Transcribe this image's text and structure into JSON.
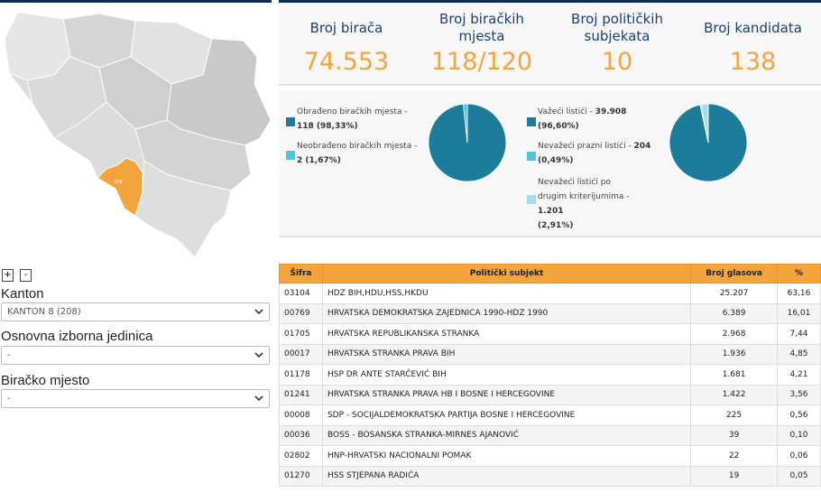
{
  "map": {
    "zoom_in": "+",
    "zoom_out": "-",
    "highlight_color": "#f5a33b",
    "highlight_label": "208"
  },
  "filters": {
    "kanton": {
      "label": "Kanton",
      "value": "KANTON 8 (208)"
    },
    "oij": {
      "label": "Osnovna izborna jedinica",
      "value": "-"
    },
    "bm": {
      "label": "Biračko mjesto",
      "value": "-"
    }
  },
  "stats": [
    {
      "title": "Broj birača",
      "value": "74.553"
    },
    {
      "title": "Broj biračkih mjesta",
      "value": "118/120"
    },
    {
      "title": "Broj političkih subjekata",
      "value": "10"
    },
    {
      "title": "Broj kandidata",
      "value": "138"
    }
  ],
  "pie1": {
    "legend": [
      {
        "label": "Obrađeno biračkih mjesta - ",
        "value": "118 (98,33%)",
        "color": "#1c7c99"
      },
      {
        "label": "Neobrađeno biračkih mjesta - ",
        "value": "2 (1,67%)",
        "color": "#55c1e0"
      }
    ],
    "slices": [
      98.33,
      1.67
    ]
  },
  "pie2": {
    "legend": [
      {
        "label": "Važeći listići - ",
        "value": "39.908",
        "pct": "(96,60%)",
        "color": "#1c7c99"
      },
      {
        "label": "Nevažeći prazni listići - ",
        "value": "204",
        "pct": "(0,49%)",
        "color": "#55c1e0"
      },
      {
        "label": "Nevažeći listići po drugim kriterijumima - ",
        "value": "1.201",
        "pct": "(2,91%)",
        "color": "#a6dcef"
      }
    ],
    "slices": [
      96.6,
      0.49,
      2.91
    ]
  },
  "table": {
    "headers": [
      "Šifra",
      "Politički subjekt",
      "Broj glasova",
      "%"
    ],
    "rows": [
      [
        "03104",
        "HDZ BIH,HDU,HSS,HKDU",
        "25.207",
        "63,16"
      ],
      [
        "00769",
        "HRVATSKA DEMOKRATSKA ZAJEDNICA 1990-HDZ 1990",
        "6.389",
        "16,01"
      ],
      [
        "01705",
        "HRVATSKA REPUBLIKANSKA STRANKA",
        "2.968",
        "7,44"
      ],
      [
        "00017",
        "HRVATSKA STRANKA PRAVA BIH",
        "1.936",
        "4,85"
      ],
      [
        "01178",
        "HSP DR ANTE STARČEVIĆ BIH",
        "1.681",
        "4,21"
      ],
      [
        "01241",
        "HRVATSKA STRANKA PRAVA HB I BOSNE I HERCEGOVINE",
        "1.422",
        "3,56"
      ],
      [
        "00008",
        "SDP - SOCIJALDEMOKRATSKA PARTIJA BOSNE I HERCEGOVINE",
        "225",
        "0,56"
      ],
      [
        "00036",
        "BOSS - BOSANSKA STRANKA-MIRNES AJANOVIĆ",
        "39",
        "0,10"
      ],
      [
        "02802",
        "HNP-HRVATSKI NACIONALNI POMAK",
        "22",
        "0,06"
      ],
      [
        "01270",
        "HSS STJEPANA RADIĆA",
        "19",
        "0,05"
      ]
    ]
  }
}
